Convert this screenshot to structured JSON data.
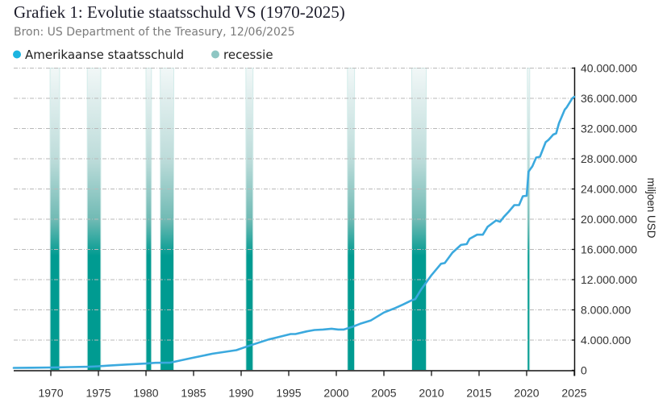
{
  "header": {
    "title": "Grafiek 1: Evolutie staatsschuld VS (1970-2025)",
    "subtitle": "Bron: US Department of the Treasury, 12/06/2025"
  },
  "legend": [
    {
      "label": "Amerikaanse staatsschuld",
      "color": "#1cb4e0"
    },
    {
      "label": "recessie",
      "color": "#8ec6c3"
    }
  ],
  "chart_data": {
    "type": "line",
    "title": "Grafiek 1: Evolutie staatsschuld VS (1970-2025)",
    "subtitle": "Bron: US Department of the Treasury, 12/06/2025",
    "xlabel": "",
    "ylabel": "miljoen USD",
    "xlim": [
      1966.1,
      2025.0
    ],
    "ylim": [
      0,
      40000000
    ],
    "x_ticks": [
      1970,
      1975,
      1980,
      1985,
      1990,
      1995,
      2000,
      2005,
      2010,
      2015,
      2020,
      2025
    ],
    "x_tick_labels": [
      "1970",
      "1975",
      "1980",
      "1985",
      "1990",
      "1995",
      "2000",
      "2005",
      "2010",
      "2015",
      "2020",
      "2025"
    ],
    "y_ticks": [
      0,
      4000000,
      8000000,
      12000000,
      16000000,
      20000000,
      24000000,
      28000000,
      32000000,
      36000000,
      40000000
    ],
    "y_tick_labels": [
      "0",
      "4.000.000",
      "8.000.000",
      "12.000.000",
      "16.000.000",
      "20.000.000",
      "24.000.000",
      "28.000.000",
      "32.000.000",
      "36.000.000",
      "40.000.000"
    ],
    "y_axis_side": "right",
    "grid": "horizontal",
    "legend_position": "top-left",
    "series": [
      {
        "name": "Amerikaanse staatsschuld",
        "color": "#3ba9de",
        "x": [
          1966.1,
          1968,
          1970,
          1971,
          1972,
          1974,
          1975,
          1976,
          1978,
          1980,
          1981,
          1982.5,
          1984.7,
          1987,
          1989.5,
          1990.9,
          1992.9,
          1993.5,
          1995.2,
          1995.7,
          1996.9,
          1997.7,
          1998.6,
          1999.5,
          2000.2,
          2000.8,
          2001.7,
          2002.5,
          2003.6,
          2005,
          2006.2,
          2007,
          2007.9,
          2008.3,
          2008.9,
          2010,
          2011,
          2011.4,
          2012.2,
          2013.1,
          2013.7,
          2014,
          2014.8,
          2015.4,
          2015.9,
          2016.8,
          2017.2,
          2017.6,
          2018.1,
          2018.7,
          2019.2,
          2019.6,
          2020.0,
          2020.2,
          2020.6,
          2021.0,
          2021.4,
          2022.0,
          2022.3,
          2022.8,
          2023.1,
          2023.4,
          2024.0,
          2024.2,
          2024.8,
          2025.0
        ],
        "y": [
          320000,
          345000,
          370000,
          400000,
          430000,
          470000,
          533000,
          620000,
          770000,
          900000,
          990000,
          1000000,
          1600000,
          2200000,
          2670000,
          3270000,
          4090000,
          4270000,
          4800000,
          4800000,
          5150000,
          5330000,
          5400000,
          5500000,
          5400000,
          5400000,
          5760000,
          6150000,
          6580000,
          7650000,
          8250000,
          8700000,
          9250000,
          9420000,
          10670000,
          12600000,
          14100000,
          14200000,
          15570000,
          16600000,
          16700000,
          17400000,
          17950000,
          17950000,
          19000000,
          19840000,
          19660000,
          20300000,
          20970000,
          21870000,
          21870000,
          23040000,
          23100000,
          26300000,
          27000000,
          28160000,
          28270000,
          30200000,
          30500000,
          31200000,
          31360000,
          32700000,
          34500000,
          34800000,
          36000000,
          36200000
        ]
      }
    ],
    "recessions": {
      "name": "recessie",
      "color": "#009b91",
      "periods": [
        {
          "start": 1969.92,
          "end": 1970.92
        },
        {
          "start": 1973.83,
          "end": 1975.25
        },
        {
          "start": 1980.0,
          "end": 1980.58
        },
        {
          "start": 1981.5,
          "end": 1982.92
        },
        {
          "start": 1990.5,
          "end": 1991.25
        },
        {
          "start": 2001.17,
          "end": 2001.92
        },
        {
          "start": 2007.92,
          "end": 2009.45
        },
        {
          "start": 2020.08,
          "end": 2020.33
        }
      ]
    }
  }
}
